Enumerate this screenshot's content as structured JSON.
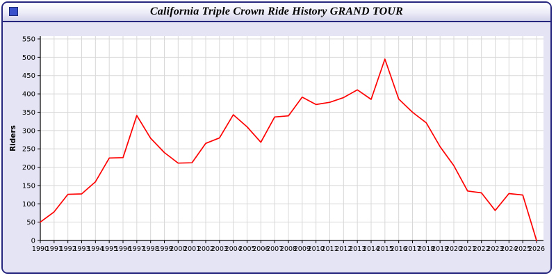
{
  "window": {
    "title": "California Triple Crown Ride History GRAND TOUR",
    "icon": "blue-square-icon"
  },
  "chart_data": {
    "type": "line",
    "title": "California Triple Crown Ride History GRAND TOUR",
    "xlabel": "",
    "ylabel": "Riders",
    "ylim": [
      0,
      550
    ],
    "ytick_step": 50,
    "grid": true,
    "legend": "none",
    "line_color": "#ff0000",
    "x": [
      1990,
      1991,
      1992,
      1993,
      1994,
      1995,
      1996,
      1997,
      1998,
      1999,
      2000,
      2001,
      2002,
      2003,
      2004,
      2005,
      2006,
      2007,
      2008,
      2009,
      2010,
      2011,
      2012,
      2013,
      2014,
      2015,
      2016,
      2017,
      2018,
      2019,
      2020,
      2021,
      2022,
      2023,
      2024,
      2025,
      2026
    ],
    "series": [
      {
        "name": "Riders",
        "values": [
          50,
          78,
          126,
          127,
          160,
          225,
          226,
          341,
          279,
          240,
          211,
          212,
          265,
          280,
          343,
          310,
          268,
          337,
          340,
          391,
          371,
          377,
          390,
          411,
          385,
          495,
          386,
          350,
          321,
          256,
          204,
          135,
          130,
          82,
          128,
          124,
          0
        ]
      }
    ]
  }
}
